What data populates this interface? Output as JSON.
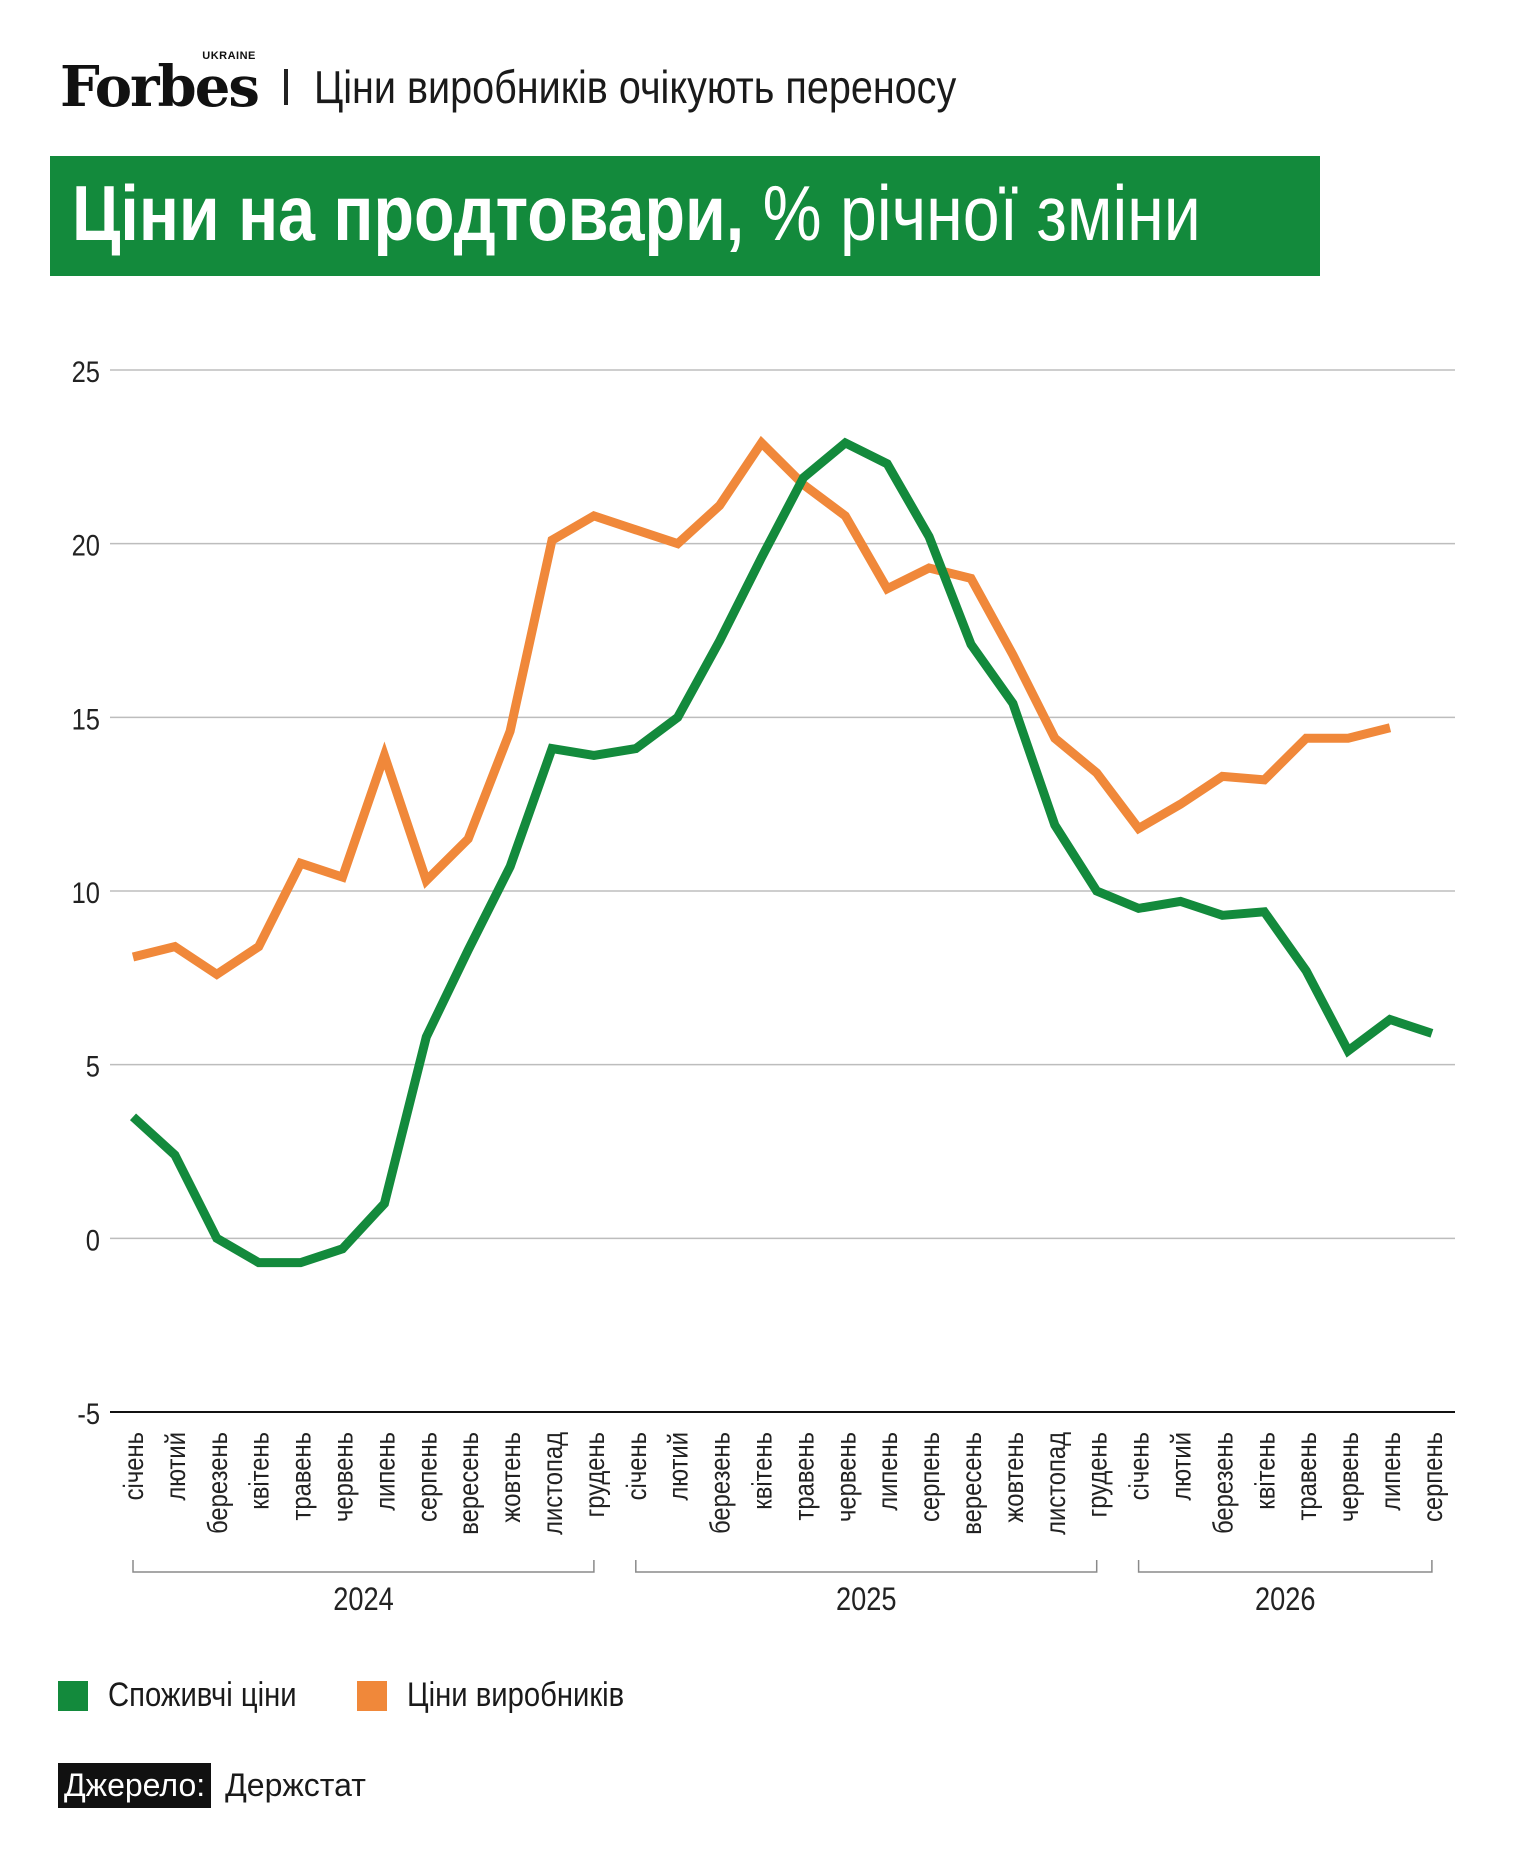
{
  "header": {
    "logo": "Forbes",
    "logo_sub": "UKRAINE",
    "title": "Ціни виробників очікують переносу"
  },
  "banner": {
    "title_bold": "Ціни на продтовари,",
    "title_rest": " % річної зміни"
  },
  "colors": {
    "consumer": "#138a3c",
    "producer": "#f0883a",
    "banner": "#138a3c"
  },
  "chart_data": {
    "type": "line",
    "title": "Ціни на продтовари, % річної зміни",
    "xlabel": "",
    "ylabel": "",
    "ylim": [
      -5,
      25
    ],
    "yticks": [
      -5,
      0,
      5,
      10,
      15,
      20,
      25
    ],
    "grid": true,
    "legend_position": "bottom-left",
    "categories": [
      "січень",
      "лютий",
      "березень",
      "квітень",
      "травень",
      "червень",
      "липень",
      "серпень",
      "вересень",
      "жовтень",
      "листопад",
      "грудень",
      "січень",
      "лютий",
      "березень",
      "квітень",
      "травень",
      "червень",
      "липень",
      "серпень",
      "вересень",
      "жовтень",
      "листопад",
      "грудень",
      "січень",
      "лютий",
      "березень",
      "квітень",
      "травень",
      "червень",
      "липень",
      "серпень"
    ],
    "years": [
      {
        "label": "2024",
        "start": 0,
        "end": 11
      },
      {
        "label": "2025",
        "start": 12,
        "end": 23
      },
      {
        "label": "2026",
        "start": 24,
        "end": 31
      }
    ],
    "series": [
      {
        "name": "Споживчі ціни",
        "color": "#138a3c",
        "values": [
          3.5,
          2.4,
          0,
          -0.7,
          -0.7,
          -0.3,
          1.0,
          5.8,
          8.3,
          10.7,
          14.1,
          13.9,
          14.1,
          15.0,
          17.2,
          19.6,
          21.9,
          22.9,
          22.3,
          20.2,
          17.1,
          15.4,
          11.9,
          10.0,
          9.5,
          9.7,
          9.3,
          9.4,
          7.7,
          5.4,
          6.3,
          5.9
        ]
      },
      {
        "name": "Ціни виробників",
        "color": "#f0883a",
        "values": [
          8.1,
          8.4,
          7.6,
          8.4,
          10.8,
          10.4,
          13.9,
          10.3,
          11.5,
          14.6,
          20.1,
          20.8,
          20.4,
          20.0,
          21.1,
          22.9,
          21.7,
          20.8,
          18.7,
          19.3,
          19.0,
          16.8,
          14.4,
          13.4,
          11.8,
          12.5,
          13.3,
          13.2,
          14.4,
          14.4,
          14.7,
          null
        ]
      }
    ]
  },
  "legend": [
    {
      "label": "Споживчі ціни",
      "color": "#138a3c"
    },
    {
      "label": "Ціни виробників",
      "color": "#f0883a"
    }
  ],
  "source": {
    "label": "Джерело:",
    "value": "Держстат"
  }
}
